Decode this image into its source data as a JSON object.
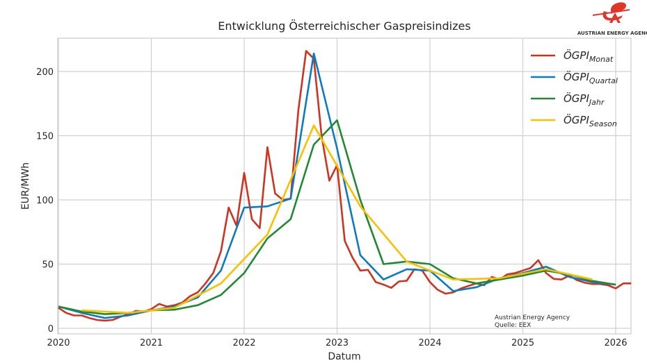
{
  "logo": {
    "text": "AUSTRIAN ENERGY AGENCY",
    "color": "#e2352a"
  },
  "chart_data": {
    "type": "line",
    "title": "Entwicklung Österreichischer Gaspreisindizes",
    "xlabel": "Datum",
    "ylabel": "EUR/MWh",
    "xlim": [
      "2020-01",
      "2026-03"
    ],
    "ylim": [
      0,
      225
    ],
    "xticks": [
      "2020",
      "2021",
      "2022",
      "2023",
      "2024",
      "2025",
      "2026"
    ],
    "yticks": [
      0,
      50,
      100,
      150,
      200
    ],
    "grid": true,
    "legend_position": "top-right",
    "annotation": [
      "Austrian Energy Agency",
      "Quelle: EEX"
    ],
    "series": [
      {
        "name": "ÖGPI",
        "subscript": "Monat",
        "color": "#d1321f",
        "x": [
          "2020-01",
          "2020-02",
          "2020-03",
          "2020-04",
          "2020-05",
          "2020-06",
          "2020-07",
          "2020-08",
          "2020-09",
          "2020-10",
          "2020-11",
          "2020-12",
          "2021-01",
          "2021-02",
          "2021-03",
          "2021-04",
          "2021-05",
          "2021-06",
          "2021-07",
          "2021-08",
          "2021-09",
          "2021-10",
          "2021-11",
          "2021-12",
          "2022-01",
          "2022-02",
          "2022-03",
          "2022-04",
          "2022-05",
          "2022-06",
          "2022-07",
          "2022-08",
          "2022-09",
          "2022-10",
          "2022-11",
          "2022-12",
          "2023-01",
          "2023-02",
          "2023-03",
          "2023-04",
          "2023-05",
          "2023-06",
          "2023-07",
          "2023-08",
          "2023-09",
          "2023-10",
          "2023-11",
          "2023-12",
          "2024-01",
          "2024-02",
          "2024-03",
          "2024-04",
          "2024-05",
          "2024-06",
          "2024-07",
          "2024-08",
          "2024-09",
          "2024-10",
          "2024-11",
          "2024-12",
          "2025-01",
          "2025-02",
          "2025-03",
          "2025-04",
          "2025-05",
          "2025-06",
          "2025-07",
          "2025-08",
          "2025-09",
          "2025-10",
          "2025-11",
          "2025-12",
          "2026-01",
          "2026-02",
          "2026-03"
        ],
        "y": [
          16,
          12,
          10,
          10,
          8,
          6.5,
          6,
          6.5,
          9,
          11,
          13.5,
          13,
          15,
          19,
          17,
          18,
          20,
          25,
          28,
          35,
          43,
          60,
          94,
          80,
          121,
          85,
          78,
          141,
          105,
          100,
          101,
          170,
          216,
          210,
          150,
          115,
          127,
          68,
          55,
          45,
          45.5,
          36,
          34,
          31.5,
          36.5,
          37,
          46,
          45,
          36,
          30,
          27,
          28,
          31,
          33,
          35,
          33.5,
          40,
          38,
          42,
          43,
          45,
          47,
          53,
          43,
          38.5,
          38,
          41,
          37.5,
          35.5,
          34.5,
          34.5,
          33.5,
          31,
          35,
          35
        ]
      },
      {
        "name": "ÖGPI",
        "subscript": "Quartal",
        "color": "#0a7bc1",
        "x": [
          "2020-01",
          "2020-04",
          "2020-07",
          "2020-10",
          "2021-01",
          "2021-04",
          "2021-07",
          "2021-10",
          "2022-01",
          "2022-04",
          "2022-07",
          "2022-10",
          "2023-01",
          "2023-04",
          "2023-07",
          "2023-10",
          "2024-01",
          "2024-04",
          "2024-07",
          "2024-10",
          "2025-01",
          "2025-04",
          "2025-07",
          "2025-10",
          "2026-01"
        ],
        "y": [
          17,
          12,
          8,
          10,
          14,
          17,
          24,
          45,
          94,
          95,
          101,
          214,
          140,
          57,
          38,
          46,
          45,
          29,
          32,
          39,
          43,
          48,
          40,
          36,
          34
        ]
      },
      {
        "name": "ÖGPI",
        "subscript": "Jahr",
        "color": "#1f8a32",
        "x": [
          "2020-01",
          "2020-04",
          "2020-07",
          "2020-10",
          "2021-01",
          "2021-04",
          "2021-07",
          "2021-10",
          "2022-01",
          "2022-04",
          "2022-07",
          "2022-10",
          "2023-01",
          "2023-04",
          "2023-07",
          "2023-10",
          "2024-01",
          "2024-04",
          "2024-07",
          "2024-10",
          "2025-01",
          "2025-04",
          "2025-07",
          "2025-10",
          "2026-01"
        ],
        "y": [
          17,
          13,
          11,
          12,
          14,
          14.5,
          18,
          26,
          43,
          70,
          85,
          143,
          162,
          100,
          50,
          52,
          50,
          39,
          35,
          38,
          41,
          45,
          42,
          37,
          34
        ]
      },
      {
        "name": "ÖGPI",
        "subscript": "Season",
        "color": "#fcbf00",
        "x": [
          "2020-04",
          "2020-10",
          "2021-04",
          "2021-10",
          "2022-04",
          "2022-10",
          "2023-04",
          "2023-10",
          "2024-04",
          "2024-10",
          "2025-04",
          "2025-10"
        ],
        "y": [
          14,
          12,
          16,
          35,
          73,
          158,
          95,
          52,
          38,
          39,
          46,
          38
        ]
      }
    ]
  }
}
